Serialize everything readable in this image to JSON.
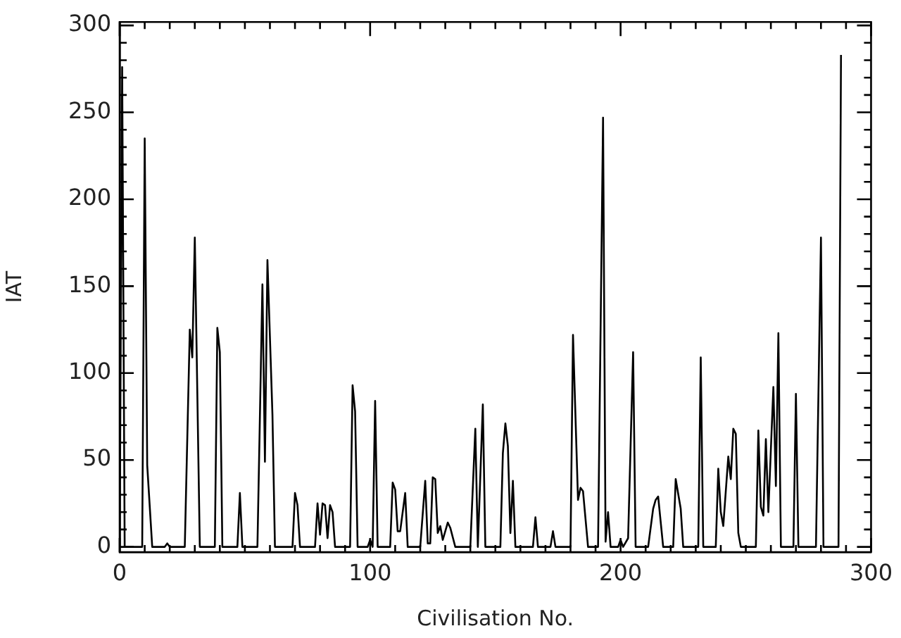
{
  "chart_data": {
    "type": "line",
    "xlabel": "Civilisation No.",
    "ylabel": "IAT",
    "color": "#000000",
    "marker": "none",
    "line_style": "solid",
    "grid": false,
    "legend": false,
    "xlim": [
      0,
      300
    ],
    "ylim": [
      -3,
      302
    ],
    "xticks": [
      0,
      {
        "value": 10,
        "label": null
      },
      {
        "value": 20,
        "label": null
      },
      {
        "value": 30,
        "label": null
      },
      {
        "value": 40,
        "label": null
      },
      {
        "value": 50,
        "label": null
      },
      {
        "value": 60,
        "label": null
      },
      {
        "value": 70,
        "label": null
      },
      {
        "value": 80,
        "label": null
      },
      {
        "value": 90,
        "label": null
      },
      100,
      {
        "value": 110,
        "label": null
      },
      {
        "value": 120,
        "label": null
      },
      {
        "value": 130,
        "label": null
      },
      {
        "value": 140,
        "label": null
      },
      {
        "value": 150,
        "label": null
      },
      {
        "value": 160,
        "label": null
      },
      {
        "value": 170,
        "label": null
      },
      {
        "value": 180,
        "label": null
      },
      {
        "value": 190,
        "label": null
      },
      200,
      {
        "value": 210,
        "label": null
      },
      {
        "value": 220,
        "label": null
      },
      {
        "value": 230,
        "label": null
      },
      {
        "value": 240,
        "label": null
      },
      {
        "value": 250,
        "label": null
      },
      {
        "value": 260,
        "label": null
      },
      {
        "value": 270,
        "label": null
      },
      {
        "value": 280,
        "label": null
      },
      {
        "value": 290,
        "label": null
      },
      300
    ],
    "yticks": [
      0,
      {
        "value": 10,
        "label": null
      },
      {
        "value": 20,
        "label": null
      },
      {
        "value": 30,
        "label": null
      },
      {
        "value": 40,
        "label": null
      },
      50,
      {
        "value": 60,
        "label": null
      },
      {
        "value": 70,
        "label": null
      },
      {
        "value": 80,
        "label": null
      },
      {
        "value": 90,
        "label": null
      },
      100,
      {
        "value": 110,
        "label": null
      },
      {
        "value": 120,
        "label": null
      },
      {
        "value": 130,
        "label": null
      },
      {
        "value": 140,
        "label": null
      },
      150,
      {
        "value": 160,
        "label": null
      },
      {
        "value": 170,
        "label": null
      },
      {
        "value": 180,
        "label": null
      },
      {
        "value": 190,
        "label": null
      },
      200,
      {
        "value": 210,
        "label": null
      },
      {
        "value": 220,
        "label": null
      },
      {
        "value": 230,
        "label": null
      },
      {
        "value": 240,
        "label": null
      },
      250,
      {
        "value": 260,
        "label": null
      },
      {
        "value": 270,
        "label": null
      },
      {
        "value": 280,
        "label": null
      },
      {
        "value": 290,
        "label": null
      },
      300
    ],
    "x": [
      0,
      1,
      2,
      9,
      10,
      11,
      13,
      18,
      19,
      20,
      26,
      28,
      29,
      30,
      32,
      38,
      39,
      40,
      41,
      47,
      48,
      49,
      55,
      57,
      58,
      59,
      61,
      62,
      69,
      70,
      71,
      72,
      78,
      79,
      80,
      81,
      82,
      83,
      84,
      85,
      86,
      92,
      93,
      94,
      95,
      99,
      100,
      101,
      102,
      103,
      108,
      109,
      110,
      111,
      112,
      114,
      115,
      120,
      122,
      123,
      124,
      125,
      126,
      127,
      128,
      129,
      131,
      132,
      134,
      140,
      142,
      143,
      145,
      146,
      152,
      153,
      154,
      155,
      156,
      157,
      158,
      165,
      166,
      167,
      172,
      173,
      174,
      180,
      181,
      183,
      184,
      185,
      187,
      191,
      193,
      194,
      195,
      196,
      199,
      200,
      201,
      203,
      205,
      206,
      211,
      213,
      214,
      215,
      217,
      221,
      222,
      224,
      225,
      231,
      232,
      233,
      238,
      239,
      240,
      241,
      243,
      244,
      245,
      246,
      247,
      248,
      254,
      255,
      256,
      257,
      258,
      259,
      261,
      262,
      263,
      264,
      269,
      270,
      271,
      278,
      280,
      281,
      287,
      288
    ],
    "values": [
      0,
      276,
      0,
      0,
      235,
      47,
      0,
      0,
      2,
      0,
      0,
      125,
      109,
      178,
      0,
      0,
      126,
      112,
      0,
      0,
      31,
      0,
      0,
      151,
      49,
      165,
      76,
      0,
      0,
      31,
      24,
      0,
      0,
      25,
      7,
      25,
      24,
      5,
      24,
      20,
      0,
      0,
      93,
      78,
      0,
      0,
      4,
      0,
      84,
      0,
      0,
      37,
      33,
      9,
      9,
      31,
      0,
      0,
      38,
      2,
      2,
      40,
      39,
      8,
      12,
      4,
      14,
      11,
      0,
      0,
      68,
      0,
      82,
      0,
      0,
      54,
      71,
      58,
      8,
      38,
      0,
      0,
      17,
      0,
      0,
      9,
      0,
      0,
      122,
      27,
      34,
      32,
      0,
      0,
      247,
      3,
      20,
      0,
      0,
      4,
      0,
      5,
      112,
      0,
      0,
      22,
      27,
      29,
      0,
      0,
      39,
      22,
      0,
      0,
      109,
      0,
      0,
      45,
      20,
      12,
      52,
      39,
      68,
      65,
      8,
      0,
      0,
      67,
      23,
      18,
      62,
      20,
      92,
      35,
      123,
      0,
      0,
      88,
      0,
      0,
      178,
      0,
      0,
      283
    ]
  }
}
